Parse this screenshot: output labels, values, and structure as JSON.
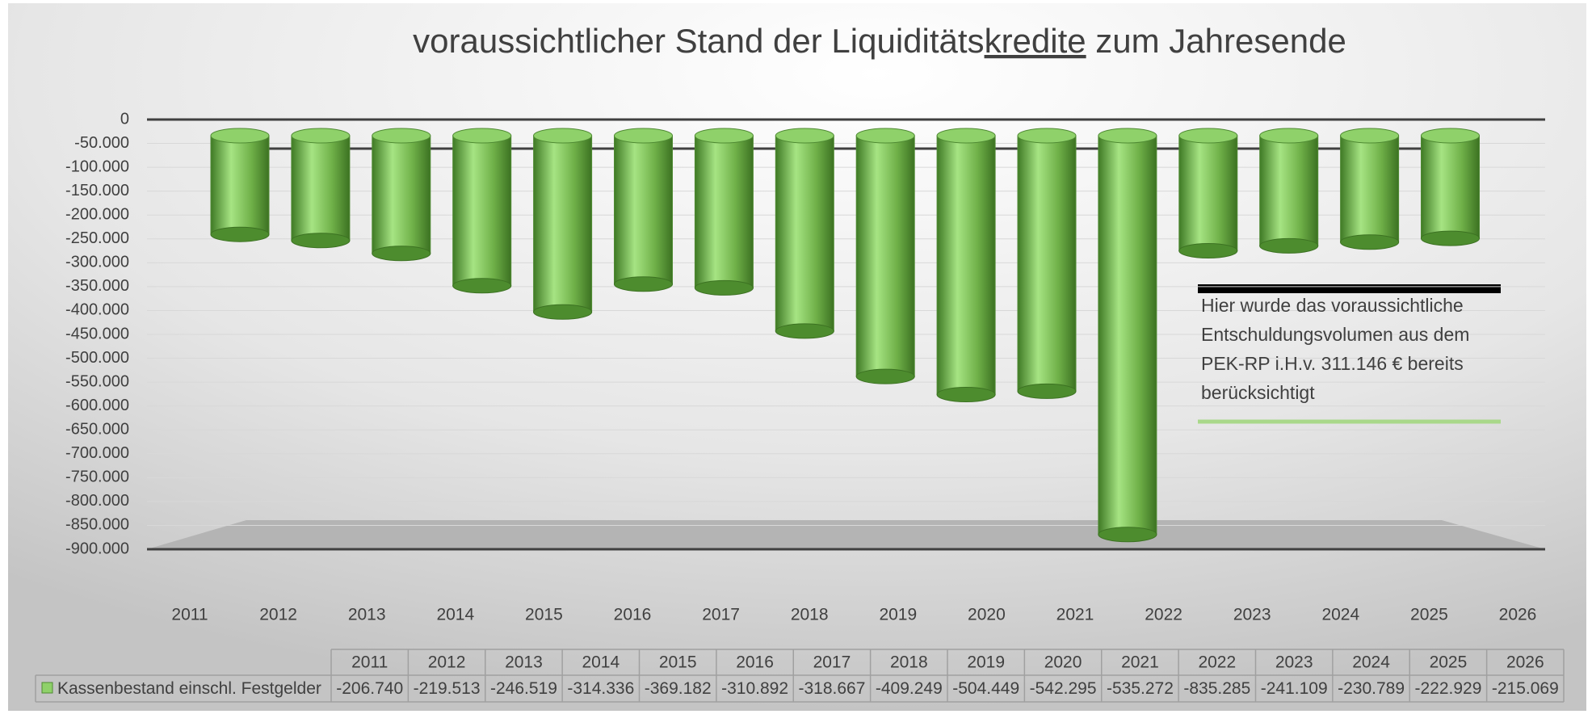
{
  "chart_data": {
    "type": "bar",
    "title_parts": [
      "voraussichtlicher Stand der Liquiditäts",
      "kredite",
      " zum Jahresende"
    ],
    "title_underlined": 1,
    "categories": [
      "2011",
      "2012",
      "2013",
      "2014",
      "2015",
      "2016",
      "2017",
      "2018",
      "2019",
      "2020",
      "2021",
      "2022",
      "2023",
      "2024",
      "2025",
      "2026"
    ],
    "series": [
      {
        "name": "Kassenbestand einschl. Festgelder",
        "color": "#8fd16a",
        "values": [
          -206740,
          -219513,
          -246519,
          -314336,
          -369182,
          -310892,
          -318667,
          -409249,
          -504449,
          -542295,
          -535272,
          -835285,
          -241109,
          -230789,
          -222929,
          -215069
        ],
        "value_labels": [
          "-206.740",
          "-219.513",
          "-246.519",
          "-314.336",
          "-369.182",
          "-310.892",
          "-318.667",
          "-409.249",
          "-504.449",
          "-542.295",
          "-535.272",
          "-835.285",
          "-241.109",
          "-230.789",
          "-222.929",
          "-215.069"
        ]
      }
    ],
    "ylim": [
      -900000,
      0
    ],
    "yticks": [
      0,
      {
        "value": -50000,
        "label": "-50.000"
      },
      {
        "value": -100000,
        "label": "-100.000"
      },
      {
        "value": -150000,
        "label": "-150.000"
      },
      {
        "value": -200000,
        "label": "-200.000"
      },
      {
        "value": -250000,
        "label": "-250.000"
      },
      {
        "value": -300000,
        "label": "-300.000"
      },
      {
        "value": -350000,
        "label": "-350.000"
      },
      {
        "value": -400000,
        "label": "-400.000"
      },
      {
        "value": -450000,
        "label": "-450.000"
      },
      {
        "value": -500000,
        "label": "-500.000"
      },
      {
        "value": -550000,
        "label": "-550.000"
      },
      {
        "value": -600000,
        "label": "-600.000"
      },
      {
        "value": -650000,
        "label": "-650.000"
      },
      {
        "value": -700000,
        "label": "-700.000"
      },
      {
        "value": -750000,
        "label": "-750.000"
      },
      {
        "value": -800000,
        "label": "-800.000"
      },
      {
        "value": -850000,
        "label": "-850.000"
      },
      {
        "value": -900000,
        "label": "-900.000"
      }
    ],
    "grid": true,
    "annotation": [
      "Hier wurde das voraussichtliche",
      "Entschuldungsvolumen aus dem",
      "PEK-RP i.H.v. 311.146 € bereits",
      "berücksichtigt"
    ]
  }
}
